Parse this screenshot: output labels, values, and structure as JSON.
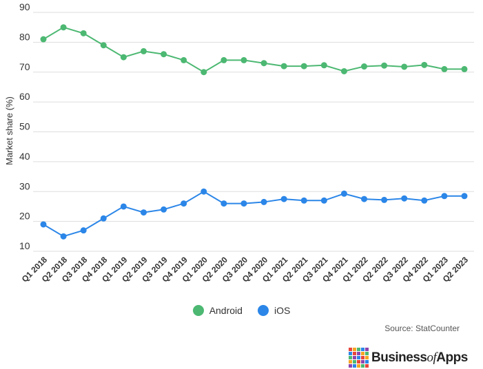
{
  "chart_data": {
    "type": "line",
    "categories": [
      "Q1 2018",
      "Q2 2018",
      "Q3 2018",
      "Q4 2018",
      "Q1 2019",
      "Q2 2019",
      "Q3 2019",
      "Q4 2019",
      "Q1 2020",
      "Q2 2020",
      "Q3 2020",
      "Q4 2020",
      "Q1 2021",
      "Q2 2021",
      "Q3 2021",
      "Q4 2021",
      "Q1 2022",
      "Q2 2022",
      "Q3 2022",
      "Q4 2022",
      "Q1 2023",
      "Q2 2023"
    ],
    "series": [
      {
        "name": "Android",
        "color": "#4cb872",
        "values": [
          81,
          85,
          83,
          79,
          75,
          77,
          76,
          74,
          70,
          74,
          74,
          73,
          72,
          72,
          72.3,
          70.3,
          71.9,
          72.2,
          71.8,
          72.4,
          71,
          71
        ]
      },
      {
        "name": "iOS",
        "color": "#2b86e8",
        "values": [
          19,
          15,
          17,
          21,
          25,
          23,
          24,
          26,
          30,
          26,
          26,
          26.5,
          27.5,
          27,
          27,
          29.3,
          27.5,
          27.2,
          27.7,
          27,
          28.5,
          28.5
        ]
      }
    ],
    "ylabel": "Market share (%)",
    "xlabel": "",
    "yticks": [
      10,
      20,
      30,
      40,
      50,
      60,
      70,
      80,
      90
    ],
    "ylim": [
      10,
      90
    ],
    "grid": true,
    "legend_position": "bottom-center"
  },
  "source": "Source: StatCounter",
  "brand": {
    "name_part1": "Business",
    "name_part2": "of",
    "name_part3": "Apps",
    "logo_colors": [
      "#e8453c",
      "#f5a623",
      "#4cb872",
      "#2b86e8",
      "#8e44ad",
      "#2b86e8",
      "#e8453c",
      "#8e44ad",
      "#f5a623",
      "#4cb872",
      "#4cb872",
      "#8e44ad",
      "#2b86e8",
      "#e8453c",
      "#f5a623",
      "#f5a623",
      "#4cb872",
      "#e8453c",
      "#8e44ad",
      "#2b86e8",
      "#8e44ad",
      "#2b86e8",
      "#f5a623",
      "#4cb872",
      "#e8453c"
    ]
  }
}
